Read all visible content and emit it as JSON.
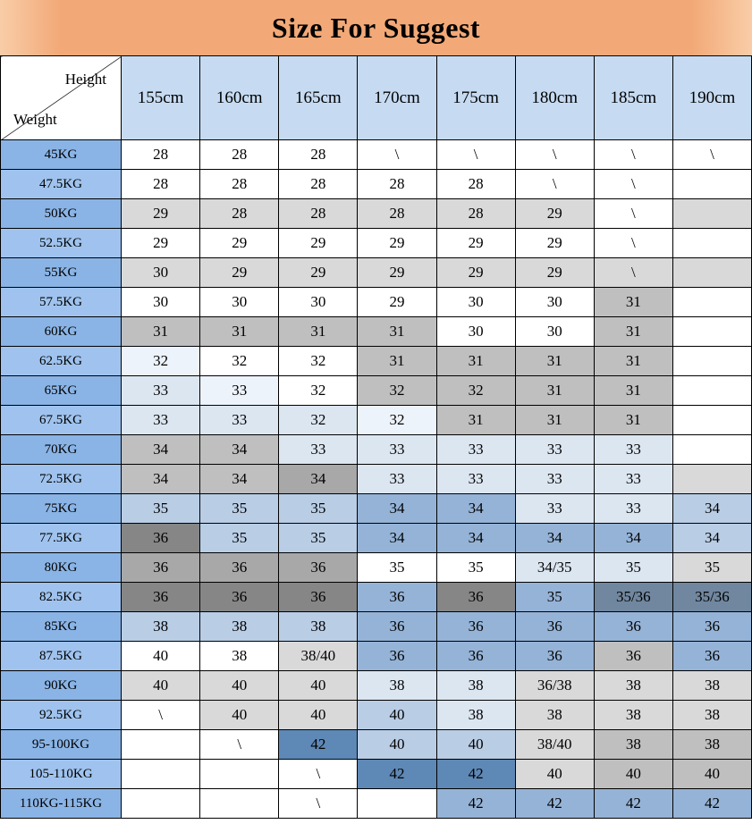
{
  "chart_data": {
    "type": "table",
    "title": "Size For Suggest",
    "corner": {
      "top_label": "Height",
      "bottom_label": "Weight"
    },
    "columns": [
      "155cm",
      "160cm",
      "165cm",
      "170cm",
      "175cm",
      "180cm",
      "185cm",
      "190cm"
    ],
    "rows": [
      {
        "label": "45KG",
        "cells": [
          [
            "28",
            "w"
          ],
          [
            "28",
            "w"
          ],
          [
            "28",
            "w"
          ],
          [
            "\\",
            "w"
          ],
          [
            "\\",
            "w"
          ],
          [
            "\\",
            "w"
          ],
          [
            "\\",
            "w"
          ],
          [
            "\\",
            "w"
          ]
        ]
      },
      {
        "label": "47.5KG",
        "cells": [
          [
            "28",
            "w"
          ],
          [
            "28",
            "w"
          ],
          [
            "28",
            "w"
          ],
          [
            "28",
            "w"
          ],
          [
            "28",
            "w"
          ],
          [
            "\\",
            "w"
          ],
          [
            "\\",
            "w"
          ],
          [
            "",
            "w"
          ]
        ]
      },
      {
        "label": "50KG",
        "cells": [
          [
            "29",
            "g1"
          ],
          [
            "28",
            "g1"
          ],
          [
            "28",
            "g1"
          ],
          [
            "28",
            "g1"
          ],
          [
            "28",
            "g1"
          ],
          [
            "29",
            "g1"
          ],
          [
            "\\",
            "w"
          ],
          [
            "",
            "g1"
          ]
        ]
      },
      {
        "label": "52.5KG",
        "cells": [
          [
            "29",
            "w"
          ],
          [
            "29",
            "w"
          ],
          [
            "29",
            "w"
          ],
          [
            "29",
            "w"
          ],
          [
            "29",
            "w"
          ],
          [
            "29",
            "w"
          ],
          [
            "\\",
            "w"
          ],
          [
            "",
            "w"
          ]
        ]
      },
      {
        "label": "55KG",
        "cells": [
          [
            "30",
            "g1"
          ],
          [
            "29",
            "g1"
          ],
          [
            "29",
            "g1"
          ],
          [
            "29",
            "g1"
          ],
          [
            "29",
            "g1"
          ],
          [
            "29",
            "g1"
          ],
          [
            "\\",
            "g1"
          ],
          [
            "",
            "g1"
          ]
        ]
      },
      {
        "label": "57.5KG",
        "cells": [
          [
            "30",
            "w"
          ],
          [
            "30",
            "w"
          ],
          [
            "30",
            "w"
          ],
          [
            "29",
            "w"
          ],
          [
            "30",
            "w"
          ],
          [
            "30",
            "w"
          ],
          [
            "31",
            "g2"
          ],
          [
            "",
            "w"
          ]
        ]
      },
      {
        "label": "60KG",
        "cells": [
          [
            "31",
            "g2"
          ],
          [
            "31",
            "g2"
          ],
          [
            "31",
            "g2"
          ],
          [
            "31",
            "g2"
          ],
          [
            "30",
            "w"
          ],
          [
            "30",
            "w"
          ],
          [
            "31",
            "g2"
          ],
          [
            "",
            "w"
          ]
        ]
      },
      {
        "label": "62.5KG",
        "cells": [
          [
            "32",
            "b0"
          ],
          [
            "32",
            "w"
          ],
          [
            "32",
            "w"
          ],
          [
            "31",
            "g2"
          ],
          [
            "31",
            "g2"
          ],
          [
            "31",
            "g2"
          ],
          [
            "31",
            "g2"
          ],
          [
            "",
            "w"
          ]
        ]
      },
      {
        "label": "65KG",
        "cells": [
          [
            "33",
            "b1"
          ],
          [
            "33",
            "b0"
          ],
          [
            "32",
            "w"
          ],
          [
            "32",
            "g2"
          ],
          [
            "32",
            "g2"
          ],
          [
            "31",
            "g2"
          ],
          [
            "31",
            "g2"
          ],
          [
            "",
            "w"
          ]
        ]
      },
      {
        "label": "67.5KG",
        "cells": [
          [
            "33",
            "b1"
          ],
          [
            "33",
            "b1"
          ],
          [
            "32",
            "b1"
          ],
          [
            "32",
            "b0"
          ],
          [
            "31",
            "g2"
          ],
          [
            "31",
            "g2"
          ],
          [
            "31",
            "g2"
          ],
          [
            "",
            "w"
          ]
        ]
      },
      {
        "label": "70KG",
        "cells": [
          [
            "34",
            "g2"
          ],
          [
            "34",
            "g2"
          ],
          [
            "33",
            "b1"
          ],
          [
            "33",
            "b1"
          ],
          [
            "33",
            "b1"
          ],
          [
            "33",
            "b1"
          ],
          [
            "33",
            "b1"
          ],
          [
            "",
            "w"
          ]
        ]
      },
      {
        "label": "72.5KG",
        "cells": [
          [
            "34",
            "g2"
          ],
          [
            "34",
            "g2"
          ],
          [
            "34",
            "g3"
          ],
          [
            "33",
            "b1"
          ],
          [
            "33",
            "b1"
          ],
          [
            "33",
            "b1"
          ],
          [
            "33",
            "b1"
          ],
          [
            "",
            "g1"
          ]
        ]
      },
      {
        "label": "75KG",
        "cells": [
          [
            "35",
            "b2"
          ],
          [
            "35",
            "b2"
          ],
          [
            "35",
            "b2"
          ],
          [
            "34",
            "b3"
          ],
          [
            "34",
            "b3"
          ],
          [
            "33",
            "b1"
          ],
          [
            "33",
            "b1"
          ],
          [
            "34",
            "b2"
          ]
        ]
      },
      {
        "label": "77.5KG",
        "cells": [
          [
            "36",
            "g4"
          ],
          [
            "35",
            "b2"
          ],
          [
            "35",
            "b2"
          ],
          [
            "34",
            "b3"
          ],
          [
            "34",
            "b3"
          ],
          [
            "34",
            "b3"
          ],
          [
            "34",
            "b3"
          ],
          [
            "34",
            "b2"
          ]
        ]
      },
      {
        "label": "80KG",
        "cells": [
          [
            "36",
            "g3"
          ],
          [
            "36",
            "g3"
          ],
          [
            "36",
            "g3"
          ],
          [
            "35",
            "w"
          ],
          [
            "35",
            "w"
          ],
          [
            "34/35",
            "b1"
          ],
          [
            "35",
            "b1"
          ],
          [
            "35",
            "g1"
          ]
        ]
      },
      {
        "label": "82.5KG",
        "cells": [
          [
            "36",
            "g4"
          ],
          [
            "36",
            "g4"
          ],
          [
            "36",
            "g4"
          ],
          [
            "36",
            "b3"
          ],
          [
            "36",
            "g4"
          ],
          [
            "35",
            "b3"
          ],
          [
            "35/36",
            "s1"
          ],
          [
            "35/36",
            "s1"
          ]
        ]
      },
      {
        "label": "85KG",
        "cells": [
          [
            "38",
            "b2"
          ],
          [
            "38",
            "b2"
          ],
          [
            "38",
            "b2"
          ],
          [
            "36",
            "b3"
          ],
          [
            "36",
            "b3"
          ],
          [
            "36",
            "b3"
          ],
          [
            "36",
            "b3"
          ],
          [
            "36",
            "b3"
          ]
        ]
      },
      {
        "label": "87.5KG",
        "cells": [
          [
            "40",
            "w"
          ],
          [
            "38",
            "w"
          ],
          [
            "38/40",
            "g1"
          ],
          [
            "36",
            "b3"
          ],
          [
            "36",
            "b3"
          ],
          [
            "36",
            "b3"
          ],
          [
            "36",
            "g2"
          ],
          [
            "36",
            "b3"
          ]
        ]
      },
      {
        "label": "90KG",
        "cells": [
          [
            "40",
            "g1"
          ],
          [
            "40",
            "g1"
          ],
          [
            "40",
            "g1"
          ],
          [
            "38",
            "b1"
          ],
          [
            "38",
            "b1"
          ],
          [
            "36/38",
            "g1"
          ],
          [
            "38",
            "g1"
          ],
          [
            "38",
            "g1"
          ]
        ]
      },
      {
        "label": "92.5KG",
        "cells": [
          [
            "\\",
            "w"
          ],
          [
            "40",
            "g1"
          ],
          [
            "40",
            "g1"
          ],
          [
            "40",
            "b2"
          ],
          [
            "38",
            "b1"
          ],
          [
            "38",
            "g1"
          ],
          [
            "38",
            "g1"
          ],
          [
            "38",
            "g1"
          ]
        ]
      },
      {
        "label": "95-100KG",
        "cells": [
          [
            "",
            "w"
          ],
          [
            "\\",
            "w"
          ],
          [
            "42",
            "b4"
          ],
          [
            "40",
            "b2"
          ],
          [
            "40",
            "b2"
          ],
          [
            "38/40",
            "g1"
          ],
          [
            "38",
            "g2"
          ],
          [
            "38",
            "g2"
          ]
        ]
      },
      {
        "label": "105-110KG",
        "cells": [
          [
            "",
            "w"
          ],
          [
            "",
            "w"
          ],
          [
            "\\",
            "w"
          ],
          [
            "42",
            "b4"
          ],
          [
            "42",
            "b4"
          ],
          [
            "40",
            "g1"
          ],
          [
            "40",
            "g2"
          ],
          [
            "40",
            "g2"
          ]
        ]
      },
      {
        "label": "110KG-115KG",
        "cells": [
          [
            "",
            "w"
          ],
          [
            "",
            "w"
          ],
          [
            "\\",
            "w"
          ],
          [
            "",
            "w"
          ],
          [
            "42",
            "b3"
          ],
          [
            "42",
            "b3"
          ],
          [
            "42",
            "b3"
          ],
          [
            "42",
            "b3"
          ]
        ]
      }
    ]
  },
  "palette": {
    "title_bg": "#f2a977",
    "title_bg_edge": "#f9cda8",
    "header_bg": "#c6dbf2",
    "label_a": "#8ab4e6",
    "label_b": "#9fc3ee",
    "w": "#ffffff",
    "g1": "#d9d9d9",
    "g2": "#bfbfbf",
    "g3": "#a8a8a8",
    "g4": "#868686",
    "b0": "#edf3fa",
    "b1": "#dce6f1",
    "b2": "#b9cde5",
    "b3": "#95b3d7",
    "b4": "#5e88b5",
    "s1": "#70879f"
  }
}
